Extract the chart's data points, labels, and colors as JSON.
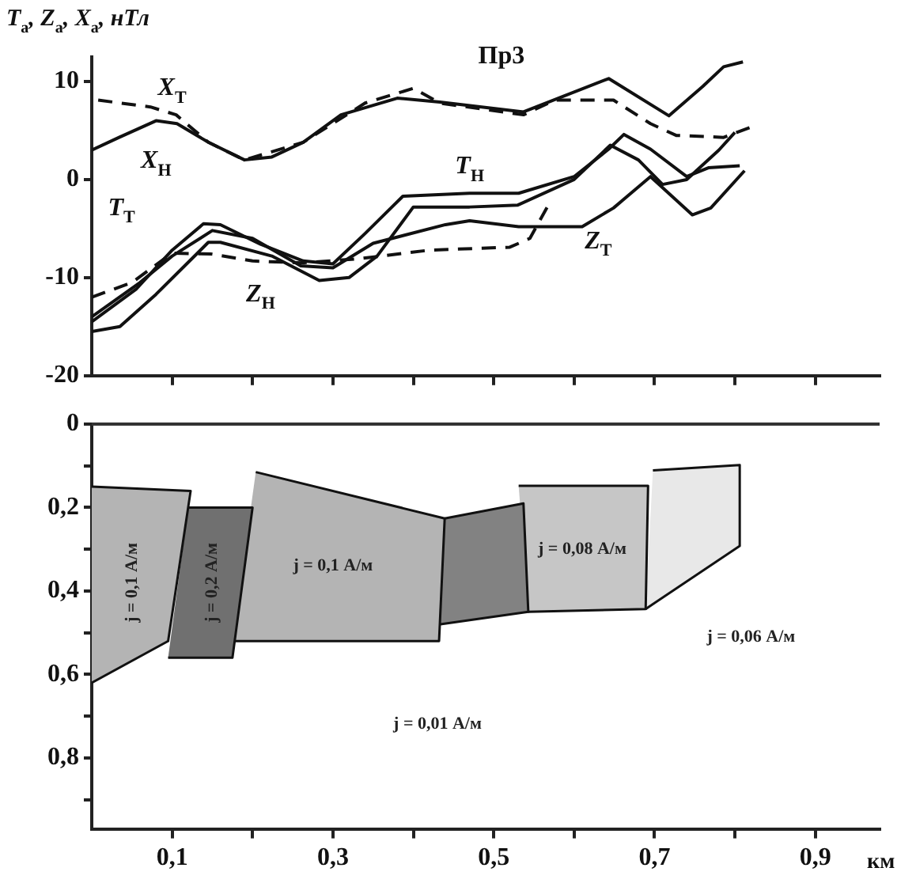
{
  "chart_data": [
    {
      "type": "line",
      "title": "Пр3",
      "ylabel": "T$_{a}$, Z$_{a}$, X$_{a}$, нТл",
      "xlim": [
        0,
        0.98
      ],
      "ylim": [
        -20,
        12.5
      ],
      "xticks": [
        {
          "value": 0.1,
          "label": null
        },
        {
          "value": 0.2,
          "label": null
        },
        {
          "value": 0.3,
          "label": null
        },
        {
          "value": 0.4,
          "label": null
        },
        {
          "value": 0.5,
          "label": null
        },
        {
          "value": 0.6,
          "label": null
        },
        {
          "value": 0.7,
          "label": null
        },
        {
          "value": 0.8,
          "label": null
        },
        {
          "value": 0.9,
          "label": null
        }
      ],
      "yticks": [
        -20,
        -10,
        0,
        10
      ],
      "tick_labels": "y",
      "marker": "none",
      "legend": false,
      "series": [
        {
          "name": "X$_{Н}$",
          "color": "#111111",
          "line_style": "solid",
          "x": [
            0,
            0.034,
            0.08,
            0.106,
            0.145,
            0.19,
            0.224,
            0.263,
            0.31,
            0.38,
            0.433,
            0.537,
            0.643,
            0.718,
            0.76,
            0.786,
            0.81
          ],
          "values": [
            3.0,
            4.3,
            6.0,
            5.7,
            3.8,
            2.0,
            2.3,
            3.8,
            6.6,
            8.3,
            7.9,
            6.9,
            10.3,
            6.5,
            9.5,
            11.5,
            12
          ]
        },
        {
          "name": "X$_{Т}$",
          "color": "#111111",
          "line_style": "dashed",
          "x": [
            0.008,
            0.073,
            0.105,
            0.145,
            0.19,
            0.263,
            0.34,
            0.4,
            0.433,
            0.537,
            0.576,
            0.649,
            0.695,
            0.727,
            0.786,
            0.825
          ],
          "values": [
            8.1,
            7.4,
            6.6,
            3.8,
            2.0,
            3.8,
            7.8,
            9.3,
            7.8,
            6.6,
            8.1,
            8.1,
            5.7,
            4.5,
            4.3,
            5.5
          ]
        },
        {
          "name": "T$_{Н}$",
          "color": "#111111",
          "line_style": "solid",
          "x": [
            0,
            0.055,
            0.1,
            0.139,
            0.16,
            0.21,
            0.263,
            0.3,
            0.34,
            0.387,
            0.47,
            0.531,
            0.6,
            0.643,
            0.662,
            0.695,
            0.74,
            0.767,
            0.806
          ],
          "values": [
            -14.5,
            -11.2,
            -7.2,
            -4.5,
            -4.6,
            -6.6,
            -8.3,
            -8.6,
            -5.5,
            -1.7,
            -1.4,
            -1.4,
            0.3,
            3.1,
            4.6,
            3.1,
            0.3,
            1.2,
            1.4
          ]
        },
        {
          "name": "T$_{Т}$",
          "color": "#111111",
          "line_style": "dashed",
          "x": [
            0,
            0.05,
            0.1,
            0.149,
            0.2,
            0.26,
            0.33,
            0.42,
            0.52,
            0.545,
            0.57
          ],
          "values": [
            -12,
            -10.5,
            -7.5,
            -7.6,
            -8.3,
            -8.5,
            -8.1,
            -7.2,
            -6.9,
            -6,
            -2.3
          ]
        },
        {
          "name": "Z$_{Н}$",
          "color": "#111111",
          "line_style": "solid",
          "x": [
            0,
            0.035,
            0.08,
            0.145,
            0.16,
            0.224,
            0.283,
            0.32,
            0.355,
            0.4,
            0.47,
            0.53,
            0.6,
            0.645,
            0.68,
            0.71,
            0.74,
            0.78,
            0.8
          ],
          "values": [
            -15.5,
            -15,
            -11.7,
            -6.4,
            -6.4,
            -7.8,
            -10.3,
            -10,
            -7.8,
            -2.8,
            -2.8,
            -2.6,
            0,
            3.5,
            2,
            -0.5,
            0,
            3,
            4.8
          ]
        },
        {
          "name": "Z$_{Т}$",
          "color": "#111111",
          "line_style": "solid",
          "x": [
            0,
            0.06,
            0.1,
            0.15,
            0.2,
            0.26,
            0.3,
            0.35,
            0.44,
            0.47,
            0.531,
            0.61,
            0.649,
            0.695,
            0.747,
            0.77,
            0.812
          ],
          "values": [
            -14,
            -10.5,
            -7.8,
            -5.2,
            -6,
            -8.8,
            -9,
            -6.5,
            -4.6,
            -4.2,
            -4.8,
            -4.8,
            -2.9,
            0.3,
            -3.6,
            -2.9,
            0.9
          ]
        }
      ]
    },
    {
      "type": "area",
      "xlabel": "км",
      "xlim": [
        0,
        0.98
      ],
      "ylim": [
        0.97,
        0
      ],
      "xticks": [
        {
          "value": 0.1,
          "label": "0,1"
        },
        {
          "value": 0.2,
          "label": null
        },
        {
          "value": 0.3,
          "label": "0,3"
        },
        {
          "value": 0.4,
          "label": null
        },
        {
          "value": 0.5,
          "label": "0,5"
        },
        {
          "value": 0.6,
          "label": null
        },
        {
          "value": 0.7,
          "label": "0,7"
        },
        {
          "value": 0.8,
          "label": null
        },
        {
          "value": 0.9,
          "label": "0,9"
        }
      ],
      "yticks": [
        {
          "value": 0,
          "label": "0"
        },
        {
          "value": 0.1,
          "label": null
        },
        {
          "value": 0.2,
          "label": "0,2"
        },
        {
          "value": 0.3,
          "label": null
        },
        {
          "value": 0.4,
          "label": "0,4"
        },
        {
          "value": 0.5,
          "label": null
        },
        {
          "value": 0.6,
          "label": "0,6"
        },
        {
          "value": 0.7,
          "label": null
        },
        {
          "value": 0.8,
          "label": "0,8"
        },
        {
          "value": 0.9,
          "label": null
        }
      ],
      "legend": false,
      "marker": "none",
      "ref_lines": [
        {
          "axis": "y",
          "value": 0
        }
      ],
      "series": [
        {
          "color": "#b4b4b4",
          "x": [
            0,
            0.123,
            0.095,
            0
          ],
          "values": [
            0.15,
            0.16,
            0.52,
            0.62
          ]
        },
        {
          "color": "#707070",
          "x": [
            0.12,
            0.2,
            0.175,
            0.095
          ],
          "values": [
            0.2,
            0.2,
            0.56,
            0.56
          ]
        },
        {
          "color": "#b4b4b4",
          "x": [
            0.204,
            0.439,
            0.432,
            0.175
          ],
          "values": [
            0.115,
            0.226,
            0.52,
            0.52
          ]
        },
        {
          "color": "#828282",
          "x": [
            0.439,
            0.537,
            0.543,
            0.432
          ],
          "values": [
            0.226,
            0.19,
            0.45,
            0.48
          ]
        },
        {
          "color": "#c6c6c6",
          "x": [
            0.531,
            0.692,
            0.689,
            0.543
          ],
          "values": [
            0.148,
            0.148,
            0.443,
            0.45
          ]
        },
        {
          "color": "#e8e8e8",
          "x": [
            0.698,
            0.806,
            0.806,
            0.689
          ],
          "values": [
            0.111,
            0.098,
            0.292,
            0.443
          ]
        }
      ],
      "annotations": [
        "j = 0,1 А/м",
        "j = 0,2 А/м",
        "j = 0,1 А/м",
        "j = 0,01 А/м",
        "j = 0,08 А/м",
        "j = 0,06 А/м"
      ]
    }
  ]
}
